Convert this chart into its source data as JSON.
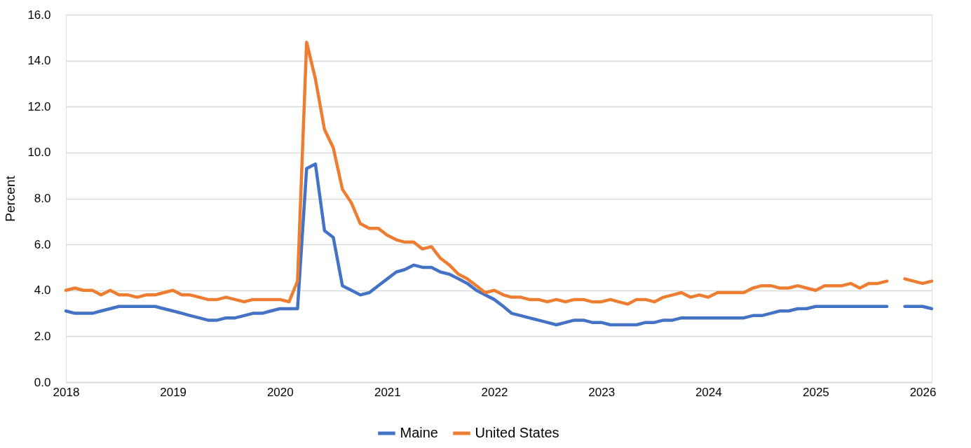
{
  "chart_data": {
    "type": "line",
    "ylabel": "Percent",
    "x": [
      "2018-01",
      "2018-02",
      "2018-03",
      "2018-04",
      "2018-05",
      "2018-06",
      "2018-07",
      "2018-08",
      "2018-09",
      "2018-10",
      "2018-11",
      "2018-12",
      "2019-01",
      "2019-02",
      "2019-03",
      "2019-04",
      "2019-05",
      "2019-06",
      "2019-07",
      "2019-08",
      "2019-09",
      "2019-10",
      "2019-11",
      "2019-12",
      "2020-01",
      "2020-02",
      "2020-03",
      "2020-04",
      "2020-05",
      "2020-06",
      "2020-07",
      "2020-08",
      "2020-09",
      "2020-10",
      "2020-11",
      "2020-12",
      "2021-01",
      "2021-02",
      "2021-03",
      "2021-04",
      "2021-05",
      "2021-06",
      "2021-07",
      "2021-08",
      "2021-09",
      "2021-10",
      "2021-11",
      "2021-12",
      "2022-01",
      "2022-02",
      "2022-03",
      "2022-04",
      "2022-05",
      "2022-06",
      "2022-07",
      "2022-08",
      "2022-09",
      "2022-10",
      "2022-11",
      "2022-12",
      "2023-01",
      "2023-02",
      "2023-03",
      "2023-04",
      "2023-05",
      "2023-06",
      "2023-07",
      "2023-08",
      "2023-09",
      "2023-10",
      "2023-11",
      "2023-12",
      "2024-01",
      "2024-02",
      "2024-03",
      "2024-04",
      "2024-05",
      "2024-06",
      "2024-07",
      "2024-08",
      "2024-09",
      "2024-10",
      "2024-11",
      "2024-12",
      "2025-01",
      "2025-02",
      "2025-03",
      "2025-04",
      "2025-05",
      "2025-06",
      "2025-07",
      "2025-08",
      "2025-09",
      "2025-10",
      "2025-11",
      "2025-12",
      "2026-01",
      "2026-02"
    ],
    "series": [
      {
        "name": "Maine",
        "color": "#4472c4",
        "values": [
          3.1,
          3.0,
          3.0,
          3.0,
          3.1,
          3.2,
          3.3,
          3.3,
          3.3,
          3.3,
          3.3,
          3.2,
          3.1,
          3.0,
          2.9,
          2.8,
          2.7,
          2.7,
          2.8,
          2.8,
          2.9,
          3.0,
          3.0,
          3.1,
          3.2,
          3.2,
          3.2,
          9.3,
          9.5,
          6.6,
          6.3,
          4.2,
          4.0,
          3.8,
          3.9,
          4.2,
          4.5,
          4.8,
          4.9,
          5.1,
          5.0,
          5.0,
          4.8,
          4.7,
          4.5,
          4.3,
          4.0,
          3.8,
          3.6,
          3.3,
          3.0,
          2.9,
          2.8,
          2.7,
          2.6,
          2.5,
          2.6,
          2.7,
          2.7,
          2.6,
          2.6,
          2.5,
          2.5,
          2.5,
          2.5,
          2.6,
          2.6,
          2.7,
          2.7,
          2.8,
          2.8,
          2.8,
          2.8,
          2.8,
          2.8,
          2.8,
          2.8,
          2.9,
          2.9,
          3.0,
          3.1,
          3.1,
          3.2,
          3.2,
          3.3,
          3.3,
          3.3,
          3.3,
          3.3,
          3.3,
          3.3,
          3.3,
          3.3,
          null,
          3.3,
          3.3,
          3.3,
          3.2
        ]
      },
      {
        "name": "United States",
        "color": "#ed7d31",
        "values": [
          4.0,
          4.1,
          4.0,
          4.0,
          3.8,
          4.0,
          3.8,
          3.8,
          3.7,
          3.8,
          3.8,
          3.9,
          4.0,
          3.8,
          3.8,
          3.7,
          3.6,
          3.6,
          3.7,
          3.6,
          3.5,
          3.6,
          3.6,
          3.6,
          3.6,
          3.5,
          4.4,
          14.8,
          13.2,
          11.0,
          10.2,
          8.4,
          7.8,
          6.9,
          6.7,
          6.7,
          6.4,
          6.2,
          6.1,
          6.1,
          5.8,
          5.9,
          5.4,
          5.1,
          4.7,
          4.5,
          4.2,
          3.9,
          4.0,
          3.8,
          3.7,
          3.7,
          3.6,
          3.6,
          3.5,
          3.6,
          3.5,
          3.6,
          3.6,
          3.5,
          3.5,
          3.6,
          3.5,
          3.4,
          3.6,
          3.6,
          3.5,
          3.7,
          3.8,
          3.9,
          3.7,
          3.8,
          3.7,
          3.9,
          3.9,
          3.9,
          3.9,
          4.1,
          4.2,
          4.2,
          4.1,
          4.1,
          4.2,
          4.1,
          4.0,
          4.2,
          4.2,
          4.2,
          4.3,
          4.1,
          4.3,
          4.3,
          4.4,
          null,
          4.5,
          4.4,
          4.3,
          4.4
        ]
      }
    ],
    "xlim": [
      "2018-01",
      "2026-02"
    ],
    "xticks": [
      "2018",
      "2019",
      "2020",
      "2021",
      "2022",
      "2023",
      "2024",
      "2025",
      "2026"
    ],
    "ylim": [
      0,
      16
    ],
    "yticks": [
      {
        "value": 0,
        "label": "0.0"
      },
      {
        "value": 2,
        "label": "2.0"
      },
      {
        "value": 4,
        "label": "4.0"
      },
      {
        "value": 6,
        "label": "6.0"
      },
      {
        "value": 8,
        "label": "8.0"
      },
      {
        "value": 10,
        "label": "10.0"
      },
      {
        "value": 12,
        "label": "12.0"
      },
      {
        "value": 14,
        "label": "14.0"
      },
      {
        "value": 16,
        "label": "16.0"
      }
    ],
    "grid": "y",
    "legend": "bottom",
    "marker": "none",
    "line_style": "solid"
  }
}
